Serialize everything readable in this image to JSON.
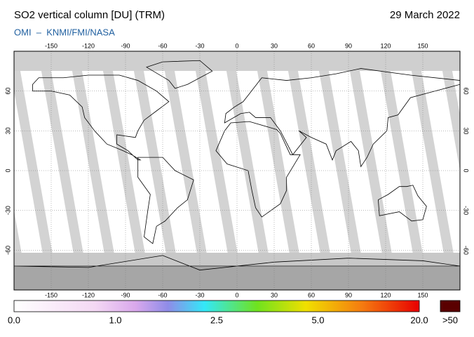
{
  "header": {
    "title": "SO2 vertical column [DU] (TRM)",
    "date": "29 March 2022",
    "source": "OMI  –  KNMI/FMI/NASA"
  },
  "map": {
    "lonlim": [
      -180,
      180
    ],
    "latlim": [
      -90,
      90
    ],
    "lon_ticks": [
      -150,
      -120,
      -90,
      -60,
      -30,
      0,
      30,
      60,
      90,
      120,
      150
    ],
    "lat_ticks": [
      60,
      30,
      0,
      -30,
      -60
    ]
  },
  "colorbar": {
    "labels": [
      "0.0",
      "1.0",
      "2.5",
      "5.0",
      "20.0"
    ],
    "overflow_label": ">50"
  }
}
